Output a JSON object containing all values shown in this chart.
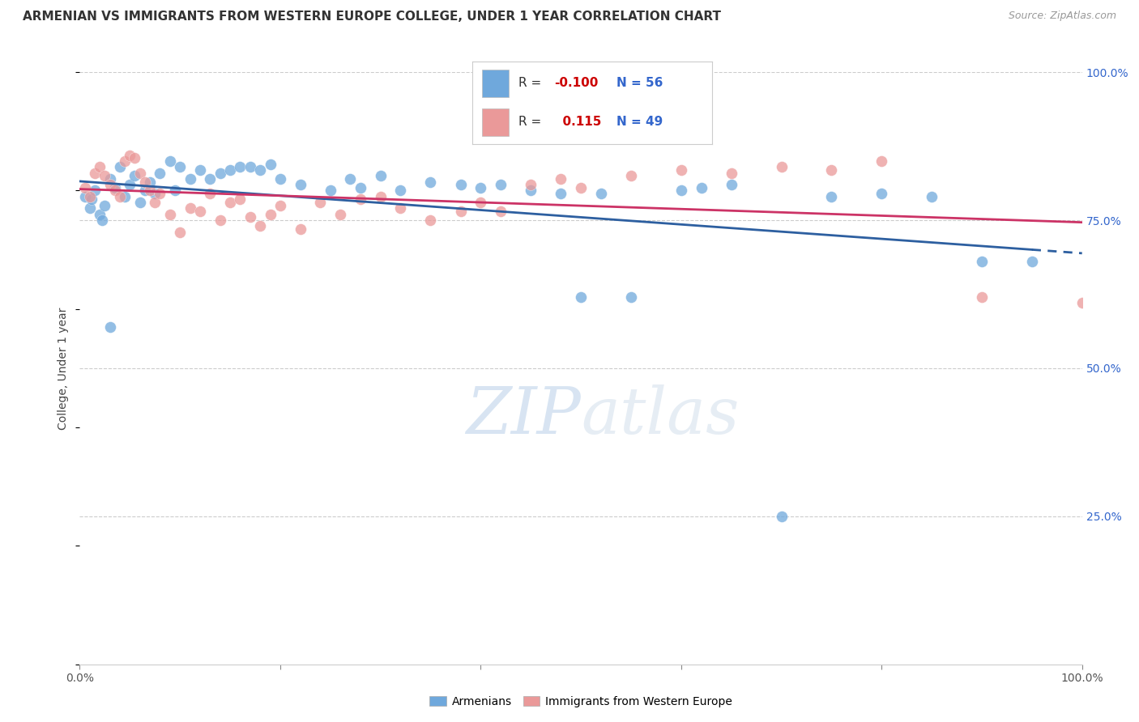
{
  "title": "ARMENIAN VS IMMIGRANTS FROM WESTERN EUROPE COLLEGE, UNDER 1 YEAR CORRELATION CHART",
  "source": "Source: ZipAtlas.com",
  "ylabel": "College, Under 1 year",
  "legend_armenians": "Armenians",
  "legend_immigrants": "Immigrants from Western Europe",
  "r_armenians": -0.1,
  "n_armenians": 56,
  "r_immigrants": 0.115,
  "n_immigrants": 49,
  "watermark_zip": "ZIP",
  "watermark_atlas": "atlas",
  "blue_color": "#6fa8dc",
  "pink_color": "#ea9999",
  "blue_line_color": "#2d5fa0",
  "pink_line_color": "#cc3366",
  "blue_scatter": [
    [
      0.5,
      79.0
    ],
    [
      1.0,
      77.0
    ],
    [
      1.2,
      78.5
    ],
    [
      1.5,
      80.0
    ],
    [
      2.0,
      76.0
    ],
    [
      2.2,
      75.0
    ],
    [
      2.5,
      77.5
    ],
    [
      3.0,
      82.0
    ],
    [
      3.5,
      80.5
    ],
    [
      4.0,
      84.0
    ],
    [
      4.5,
      79.0
    ],
    [
      5.0,
      81.0
    ],
    [
      5.5,
      82.5
    ],
    [
      6.0,
      78.0
    ],
    [
      6.5,
      80.0
    ],
    [
      7.0,
      81.5
    ],
    [
      7.5,
      79.5
    ],
    [
      8.0,
      83.0
    ],
    [
      9.0,
      85.0
    ],
    [
      9.5,
      80.0
    ],
    [
      10.0,
      84.0
    ],
    [
      11.0,
      82.0
    ],
    [
      12.0,
      83.5
    ],
    [
      13.0,
      82.0
    ],
    [
      14.0,
      83.0
    ],
    [
      15.0,
      83.5
    ],
    [
      16.0,
      84.0
    ],
    [
      17.0,
      84.0
    ],
    [
      18.0,
      83.5
    ],
    [
      19.0,
      84.5
    ],
    [
      20.0,
      82.0
    ],
    [
      22.0,
      81.0
    ],
    [
      25.0,
      80.0
    ],
    [
      27.0,
      82.0
    ],
    [
      28.0,
      80.5
    ],
    [
      30.0,
      82.5
    ],
    [
      32.0,
      80.0
    ],
    [
      35.0,
      81.5
    ],
    [
      38.0,
      81.0
    ],
    [
      40.0,
      80.5
    ],
    [
      42.0,
      81.0
    ],
    [
      45.0,
      80.0
    ],
    [
      48.0,
      79.5
    ],
    [
      50.0,
      62.0
    ],
    [
      52.0,
      79.5
    ],
    [
      55.0,
      62.0
    ],
    [
      60.0,
      80.0
    ],
    [
      62.0,
      80.5
    ],
    [
      65.0,
      81.0
    ],
    [
      70.0,
      25.0
    ],
    [
      75.0,
      79.0
    ],
    [
      80.0,
      79.5
    ],
    [
      85.0,
      79.0
    ],
    [
      90.0,
      68.0
    ],
    [
      95.0,
      68.0
    ],
    [
      3.0,
      57.0
    ]
  ],
  "pink_scatter": [
    [
      0.5,
      80.5
    ],
    [
      1.0,
      79.0
    ],
    [
      1.5,
      83.0
    ],
    [
      2.0,
      84.0
    ],
    [
      2.5,
      82.5
    ],
    [
      3.0,
      81.0
    ],
    [
      3.5,
      80.0
    ],
    [
      4.0,
      79.0
    ],
    [
      4.5,
      85.0
    ],
    [
      5.0,
      86.0
    ],
    [
      5.5,
      85.5
    ],
    [
      6.0,
      83.0
    ],
    [
      6.5,
      81.5
    ],
    [
      7.0,
      80.0
    ],
    [
      7.5,
      78.0
    ],
    [
      8.0,
      79.5
    ],
    [
      9.0,
      76.0
    ],
    [
      10.0,
      73.0
    ],
    [
      11.0,
      77.0
    ],
    [
      12.0,
      76.5
    ],
    [
      13.0,
      79.5
    ],
    [
      14.0,
      75.0
    ],
    [
      15.0,
      78.0
    ],
    [
      16.0,
      78.5
    ],
    [
      17.0,
      75.5
    ],
    [
      18.0,
      74.0
    ],
    [
      19.0,
      76.0
    ],
    [
      20.0,
      77.5
    ],
    [
      22.0,
      73.5
    ],
    [
      24.0,
      78.0
    ],
    [
      26.0,
      76.0
    ],
    [
      28.0,
      78.5
    ],
    [
      30.0,
      79.0
    ],
    [
      32.0,
      77.0
    ],
    [
      35.0,
      75.0
    ],
    [
      38.0,
      76.5
    ],
    [
      40.0,
      78.0
    ],
    [
      42.0,
      76.5
    ],
    [
      45.0,
      81.0
    ],
    [
      48.0,
      82.0
    ],
    [
      50.0,
      80.5
    ],
    [
      55.0,
      82.5
    ],
    [
      60.0,
      83.5
    ],
    [
      65.0,
      83.0
    ],
    [
      70.0,
      84.0
    ],
    [
      75.0,
      83.5
    ],
    [
      80.0,
      85.0
    ],
    [
      90.0,
      62.0
    ],
    [
      100.0,
      61.0
    ]
  ],
  "xlim": [
    0,
    100
  ],
  "ylim": [
    0,
    100
  ],
  "grid_lines": [
    25,
    50,
    75,
    100
  ],
  "right_ytick_labels": [
    "25.0%",
    "50.0%",
    "75.0%",
    "100.0%"
  ],
  "right_ytick_values": [
    25,
    50,
    75,
    100
  ],
  "solid_line_end_x": 95,
  "dash_line_start_x": 95
}
